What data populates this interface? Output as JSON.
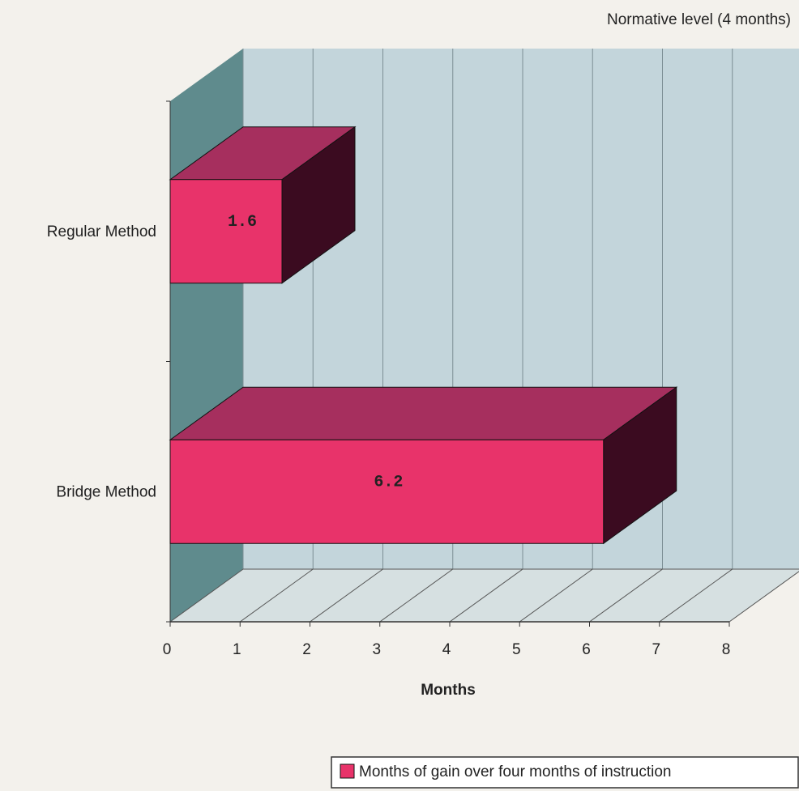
{
  "chart_data": {
    "type": "bar3d_horizontal",
    "annotation": "Normative level (4 months)",
    "categories": [
      "Regular Method",
      "Bridge Method"
    ],
    "series": [
      {
        "name": "Months of gain over four months of instruction",
        "color": "#e8336a",
        "values": [
          1.6,
          6.2
        ]
      }
    ],
    "xlabel": "Months",
    "xlim": [
      0,
      8
    ],
    "xticks": [
      0,
      1,
      2,
      3,
      4,
      5,
      6,
      7,
      8
    ],
    "grid": true,
    "legend": "bottom-right"
  }
}
